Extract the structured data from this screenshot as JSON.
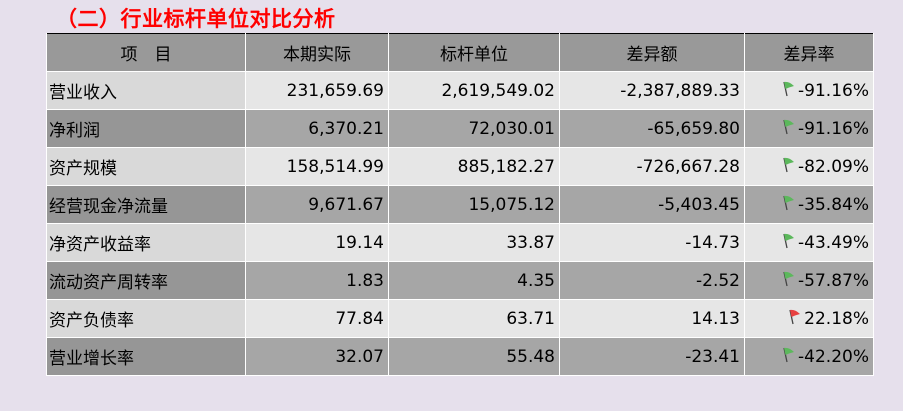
{
  "title": "（二）行业标杆单位对比分析",
  "colors": {
    "flag_good": "#5cb85c",
    "flag_bad": "#e84040",
    "title": "#ff0000"
  },
  "headers": [
    "项　目",
    "本期实际",
    "标杆单位",
    "差异额",
    "差异率"
  ],
  "rows": [
    {
      "name": "营业收入",
      "actual": "231,659.69",
      "benchmark": "2,619,549.02",
      "diff": "-2,387,889.33",
      "rate": "-91.16%",
      "flag": "green-flag"
    },
    {
      "name": "净利润",
      "actual": "6,370.21",
      "benchmark": "72,030.01",
      "diff": "-65,659.80",
      "rate": "-91.16%",
      "flag": "green-flag"
    },
    {
      "name": "资产规模",
      "actual": "158,514.99",
      "benchmark": "885,182.27",
      "diff": "-726,667.28",
      "rate": "-82.09%",
      "flag": "green-flag"
    },
    {
      "name": "经营现金净流量",
      "actual": "9,671.67",
      "benchmark": "15,075.12",
      "diff": "-5,403.45",
      "rate": "-35.84%",
      "flag": "green-flag"
    },
    {
      "name": "净资产收益率",
      "actual": "19.14",
      "benchmark": "33.87",
      "diff": "-14.73",
      "rate": "-43.49%",
      "flag": "green-flag"
    },
    {
      "name": "流动资产周转率",
      "actual": "1.83",
      "benchmark": "4.35",
      "diff": "-2.52",
      "rate": "-57.87%",
      "flag": "green-flag"
    },
    {
      "name": "资产负债率",
      "actual": "77.84",
      "benchmark": "63.71",
      "diff": "14.13",
      "rate": "22.18%",
      "flag": "red-flag"
    },
    {
      "name": "营业增长率",
      "actual": "32.07",
      "benchmark": "55.48",
      "diff": "-23.41",
      "rate": "-42.20%",
      "flag": "green-flag"
    }
  ]
}
